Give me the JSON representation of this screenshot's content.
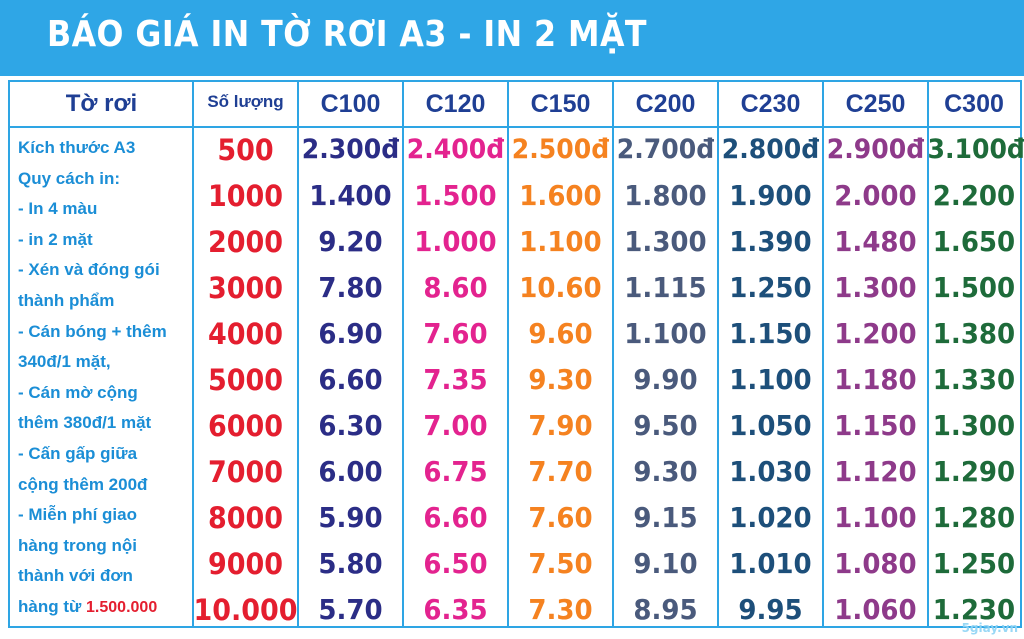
{
  "banner": {
    "title": "BÁO GIÁ IN TỜ RƠI A3 - IN 2 MẶT"
  },
  "table": {
    "headers": [
      "Tờ rơi",
      "Số lượng",
      "C100",
      "C120",
      "C150",
      "C200",
      "C230",
      "C250",
      "C300"
    ],
    "description": [
      "Kích thước A3",
      "Quy cách in:",
      "- In 4 màu",
      "-  in 2 mặt",
      "- Xén và đóng gói",
      "thành phẩm",
      "- Cán bóng + thêm",
      "340đ/1 mặt,",
      "- Cán mờ cộng",
      "thêm 380đ/1 mặt",
      "- Cấn gấp giữa",
      "cộng thêm 200đ",
      "- Miễn phí giao",
      "hàng trong nội",
      "thành với đơn"
    ],
    "description_last_prefix": "hàng từ ",
    "description_last_amount": "1.500.000",
    "column_colors": [
      "#e41e2f",
      "#2b2d86",
      "#e3238f",
      "#f58220",
      "#4a5a7c",
      "#1d4f7a",
      "#8e3a8a",
      "#1e6b3a"
    ],
    "rows": [
      [
        "500",
        "2.300đ",
        "2.400đ",
        "2.500đ",
        "2.700đ",
        "2.800đ",
        "2.900đ",
        "3.100đ"
      ],
      [
        "1000",
        "1.400",
        "1.500",
        "1.600",
        "1.800",
        "1.900",
        "2.000",
        "2.200"
      ],
      [
        "2000",
        "9.20",
        "1.000",
        "1.100",
        "1.300",
        "1.390",
        "1.480",
        "1.650"
      ],
      [
        "3000",
        "7.80",
        "8.60",
        "10.60",
        "1.115",
        "1.250",
        "1.300",
        "1.500"
      ],
      [
        "4000",
        "6.90",
        "7.60",
        "9.60",
        "1.100",
        "1.150",
        "1.200",
        "1.380"
      ],
      [
        "5000",
        "6.60",
        "7.35",
        "9.30",
        "9.90",
        "1.100",
        "1.180",
        "1.330"
      ],
      [
        "6000",
        "6.30",
        "7.00",
        "7.90",
        "9.50",
        "1.050",
        "1.150",
        "1.300"
      ],
      [
        "7000",
        "6.00",
        "6.75",
        "7.70",
        "9.30",
        "1.030",
        "1.120",
        "1.290"
      ],
      [
        "8000",
        "5.90",
        "6.60",
        "7.60",
        "9.15",
        "1.020",
        "1.100",
        "1.280"
      ],
      [
        "9000",
        "5.80",
        "6.50",
        "7.50",
        "9.10",
        "1.010",
        "1.080",
        "1.250"
      ],
      [
        "10.000",
        "5.70",
        "6.35",
        "7.30",
        "8.95",
        "9.95",
        "1.060",
        "1.230"
      ]
    ]
  },
  "watermark": "5giay.vn"
}
